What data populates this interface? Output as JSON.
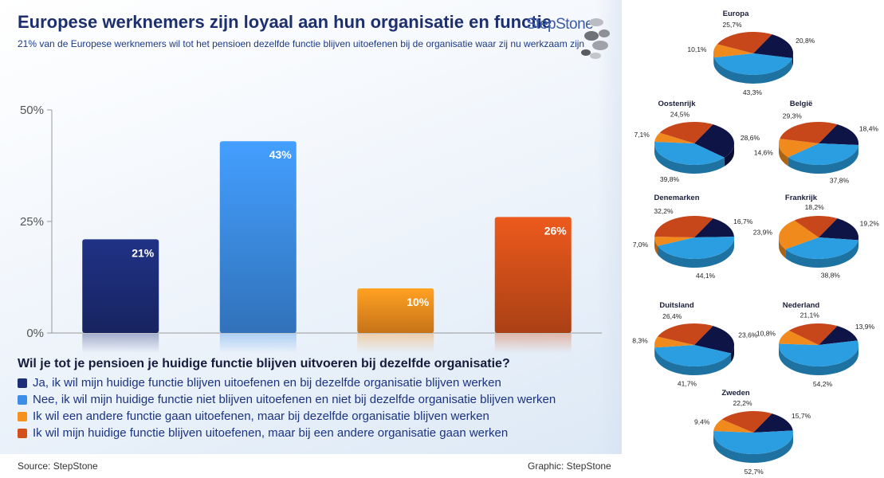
{
  "header": {
    "title": "Europese werknemers zijn loyaal aan hun organisatie en functie",
    "subtitle": "21% van de Europese werknemers wil tot het pensioen dezelfde functie blijven uitoefenen bij de organisatie waar zij nu werkzaam zijn",
    "brand": "StepStone"
  },
  "question": "Wil je tot je pensioen je huidige functie blijven uitvoeren bij dezelfde organisatie?",
  "legend": [
    {
      "label": "Ja, ik wil mijn huidige functie blijven uitoefenen en bij dezelfde organisatie blijven werken",
      "color": "#1d2d78"
    },
    {
      "label": "Nee, ik wil mijn huidige functie niet blijven uitoefenen en niet bij dezelfde organisatie blijven werken",
      "color": "#3d8ee8"
    },
    {
      "label": "Ik wil een andere functie gaan uitoefenen, maar bij dezelfde organisatie blijven werken",
      "color": "#f7901e"
    },
    {
      "label": "Ik wil mijn huidige functie blijven uitoefenen, maar bij een andere organisatie gaan werken",
      "color": "#d4501a"
    }
  ],
  "footer": {
    "source": "Source: StepStone",
    "graphic": "Graphic: StepStone"
  },
  "chart_data": [
    {
      "type": "bar",
      "title": "",
      "xlabel": "",
      "ylabel": "",
      "ylim": [
        0,
        50
      ],
      "yticks": [
        "0%",
        "25%",
        "50%"
      ],
      "yticks_values": [
        0,
        25,
        50
      ],
      "categories": [
        "Ja",
        "Nee",
        "Andere functie",
        "Andere organisatie"
      ],
      "values": [
        21,
        43,
        10,
        26
      ],
      "value_labels": [
        "21%",
        "43%",
        "10%",
        "26%"
      ],
      "colors": [
        "#1d2d78",
        "#3d8ee8",
        "#f7901e",
        "#d4501a"
      ],
      "grid": false
    },
    {
      "type": "pie",
      "title": "",
      "slice_colors": [
        "#0f1446",
        "#2a9ee0",
        "#f08a1c",
        "#c7461a"
      ],
      "charts": [
        {
          "name": "Europa",
          "values": [
            20.8,
            43.3,
            10.1,
            25.7
          ],
          "labels": [
            "20,8%",
            "43,3%",
            "10,1%",
            "25,7%"
          ]
        },
        {
          "name": "Oostenrijk",
          "values": [
            28.6,
            39.8,
            7.1,
            24.5
          ],
          "labels": [
            "28,6%",
            "39,8%",
            "7,1%",
            "24,5%"
          ]
        },
        {
          "name": "België",
          "values": [
            18.4,
            37.8,
            14.6,
            29.3
          ],
          "labels": [
            "18,4%",
            "37,8%",
            "14,6%",
            "29,3%"
          ]
        },
        {
          "name": "Denemarken",
          "values": [
            16.7,
            44.1,
            7.0,
            32.2
          ],
          "labels": [
            "16,7%",
            "44,1%",
            "7,0%",
            "32,2%"
          ]
        },
        {
          "name": "Frankrijk",
          "values": [
            19.2,
            38.8,
            23.9,
            18.2
          ],
          "labels": [
            "19,2%",
            "38,8%",
            "23,9%",
            "18,2%"
          ]
        },
        {
          "name": "Duitsland",
          "values": [
            23.6,
            41.7,
            8.3,
            26.4
          ],
          "labels": [
            "23,6%",
            "41,7%",
            "8,3%",
            "26,4%"
          ]
        },
        {
          "name": "Nederland",
          "values": [
            13.9,
            54.2,
            10.8,
            21.1
          ],
          "labels": [
            "13,9%",
            "54,2%",
            "10,8%",
            "21,1%"
          ]
        },
        {
          "name": "Zweden",
          "values": [
            15.7,
            52.7,
            9.4,
            22.2
          ],
          "labels": [
            "15,7%",
            "52,7%",
            "9,4%",
            "22,2%"
          ]
        }
      ]
    }
  ]
}
